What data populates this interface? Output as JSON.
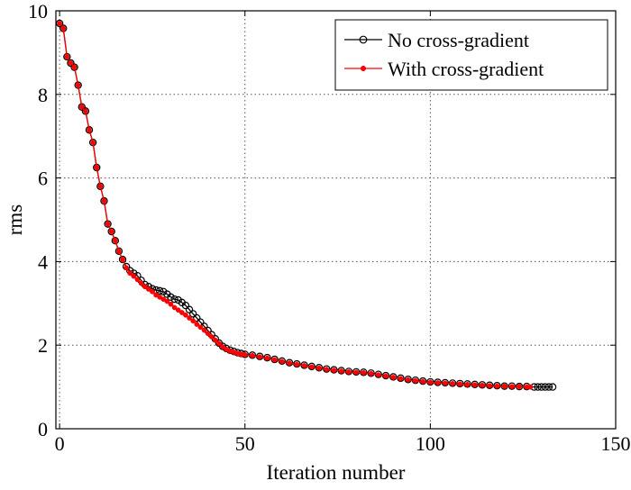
{
  "chart_data": {
    "type": "line",
    "title": "",
    "xlabel": "Iteration number",
    "ylabel": "rms",
    "xlim": [
      -1,
      150
    ],
    "ylim": [
      0,
      10
    ],
    "xticks": [
      0,
      50,
      100,
      150
    ],
    "yticks": [
      0,
      2,
      4,
      6,
      8,
      10
    ],
    "grid": true,
    "legend_position": "top-right",
    "series": [
      {
        "name": "No cross-gradient",
        "color": "#000000",
        "marker": "circle",
        "points": [
          [
            0,
            9.7
          ],
          [
            1,
            9.58
          ],
          [
            2,
            8.9
          ],
          [
            3,
            8.75
          ],
          [
            4,
            8.65
          ],
          [
            5,
            8.22
          ],
          [
            6,
            7.7
          ],
          [
            7,
            7.6
          ],
          [
            8,
            7.15
          ],
          [
            9,
            6.85
          ],
          [
            10,
            6.25
          ],
          [
            11,
            5.8
          ],
          [
            12,
            5.45
          ],
          [
            13,
            4.9
          ],
          [
            14,
            4.72
          ],
          [
            15,
            4.5
          ],
          [
            16,
            4.25
          ],
          [
            17,
            4.05
          ],
          [
            18,
            3.88
          ],
          [
            19,
            3.78
          ],
          [
            20,
            3.72
          ],
          [
            21,
            3.66
          ],
          [
            22,
            3.55
          ],
          [
            23,
            3.45
          ],
          [
            24,
            3.4
          ],
          [
            25,
            3.35
          ],
          [
            26,
            3.32
          ],
          [
            27,
            3.3
          ],
          [
            28,
            3.28
          ],
          [
            29,
            3.22
          ],
          [
            30,
            3.15
          ],
          [
            31,
            3.1
          ],
          [
            32,
            3.08
          ],
          [
            33,
            3.02
          ],
          [
            34,
            2.95
          ],
          [
            35,
            2.85
          ],
          [
            36,
            2.75
          ],
          [
            37,
            2.65
          ],
          [
            38,
            2.55
          ],
          [
            39,
            2.45
          ],
          [
            40,
            2.35
          ],
          [
            41,
            2.25
          ],
          [
            42,
            2.15
          ],
          [
            43,
            2.05
          ],
          [
            44,
            1.97
          ],
          [
            45,
            1.92
          ],
          [
            46,
            1.88
          ],
          [
            47,
            1.85
          ],
          [
            48,
            1.82
          ],
          [
            49,
            1.8
          ],
          [
            50,
            1.78
          ],
          [
            52,
            1.76
          ],
          [
            54,
            1.73
          ],
          [
            56,
            1.7
          ],
          [
            58,
            1.66
          ],
          [
            60,
            1.62
          ],
          [
            62,
            1.58
          ],
          [
            64,
            1.55
          ],
          [
            66,
            1.52
          ],
          [
            68,
            1.49
          ],
          [
            70,
            1.46
          ],
          [
            72,
            1.43
          ],
          [
            74,
            1.41
          ],
          [
            76,
            1.39
          ],
          [
            78,
            1.37
          ],
          [
            80,
            1.36
          ],
          [
            82,
            1.35
          ],
          [
            84,
            1.33
          ],
          [
            86,
            1.3
          ],
          [
            88,
            1.27
          ],
          [
            90,
            1.24
          ],
          [
            92,
            1.21
          ],
          [
            94,
            1.18
          ],
          [
            96,
            1.16
          ],
          [
            98,
            1.14
          ],
          [
            100,
            1.12
          ],
          [
            102,
            1.11
          ],
          [
            104,
            1.1
          ],
          [
            106,
            1.09
          ],
          [
            108,
            1.08
          ],
          [
            110,
            1.07
          ],
          [
            112,
            1.06
          ],
          [
            114,
            1.05
          ],
          [
            116,
            1.04
          ],
          [
            118,
            1.03
          ],
          [
            120,
            1.02
          ],
          [
            122,
            1.02
          ],
          [
            124,
            1.01
          ],
          [
            126,
            1.01
          ],
          [
            128,
            1.0
          ],
          [
            129,
            1.0
          ],
          [
            130,
            1.0
          ],
          [
            131,
            1.0
          ],
          [
            132,
            1.0
          ],
          [
            133,
            1.0
          ]
        ]
      },
      {
        "name": "With cross-gradient",
        "color": "#ff0000",
        "marker": "star",
        "points": [
          [
            0,
            9.7
          ],
          [
            1,
            9.58
          ],
          [
            2,
            8.9
          ],
          [
            3,
            8.75
          ],
          [
            4,
            8.65
          ],
          [
            5,
            8.22
          ],
          [
            6,
            7.7
          ],
          [
            7,
            7.6
          ],
          [
            8,
            7.15
          ],
          [
            9,
            6.85
          ],
          [
            10,
            6.25
          ],
          [
            11,
            5.8
          ],
          [
            12,
            5.45
          ],
          [
            13,
            4.9
          ],
          [
            14,
            4.72
          ],
          [
            15,
            4.5
          ],
          [
            16,
            4.25
          ],
          [
            17,
            4.05
          ],
          [
            18,
            3.85
          ],
          [
            19,
            3.72
          ],
          [
            20,
            3.65
          ],
          [
            21,
            3.57
          ],
          [
            22,
            3.48
          ],
          [
            23,
            3.4
          ],
          [
            24,
            3.34
          ],
          [
            25,
            3.28
          ],
          [
            26,
            3.2
          ],
          [
            27,
            3.15
          ],
          [
            28,
            3.1
          ],
          [
            29,
            3.05
          ],
          [
            30,
            2.98
          ],
          [
            31,
            2.9
          ],
          [
            32,
            2.84
          ],
          [
            33,
            2.78
          ],
          [
            34,
            2.72
          ],
          [
            35,
            2.65
          ],
          [
            36,
            2.58
          ],
          [
            37,
            2.5
          ],
          [
            38,
            2.43
          ],
          [
            39,
            2.36
          ],
          [
            40,
            2.28
          ],
          [
            41,
            2.2
          ],
          [
            42,
            2.12
          ],
          [
            43,
            2.04
          ],
          [
            44,
            1.96
          ],
          [
            45,
            1.9
          ],
          [
            46,
            1.86
          ],
          [
            47,
            1.83
          ],
          [
            48,
            1.8
          ],
          [
            49,
            1.78
          ],
          [
            50,
            1.77
          ],
          [
            52,
            1.75
          ],
          [
            54,
            1.72
          ],
          [
            56,
            1.69
          ],
          [
            58,
            1.65
          ],
          [
            60,
            1.61
          ],
          [
            62,
            1.57
          ],
          [
            64,
            1.54
          ],
          [
            66,
            1.51
          ],
          [
            68,
            1.48
          ],
          [
            70,
            1.45
          ],
          [
            72,
            1.42
          ],
          [
            74,
            1.4
          ],
          [
            76,
            1.38
          ],
          [
            78,
            1.36
          ],
          [
            80,
            1.35
          ],
          [
            82,
            1.34
          ],
          [
            84,
            1.32
          ],
          [
            86,
            1.29
          ],
          [
            88,
            1.26
          ],
          [
            90,
            1.23
          ],
          [
            92,
            1.2
          ],
          [
            94,
            1.17
          ],
          [
            96,
            1.15
          ],
          [
            98,
            1.13
          ],
          [
            100,
            1.11
          ],
          [
            102,
            1.1
          ],
          [
            104,
            1.09
          ],
          [
            106,
            1.08
          ],
          [
            108,
            1.07
          ],
          [
            110,
            1.06
          ],
          [
            112,
            1.05
          ],
          [
            114,
            1.04
          ],
          [
            116,
            1.03
          ],
          [
            118,
            1.02
          ],
          [
            120,
            1.02
          ],
          [
            122,
            1.01
          ],
          [
            124,
            1.01
          ],
          [
            126,
            1.0
          ],
          [
            127,
            1.0
          ]
        ]
      }
    ]
  }
}
